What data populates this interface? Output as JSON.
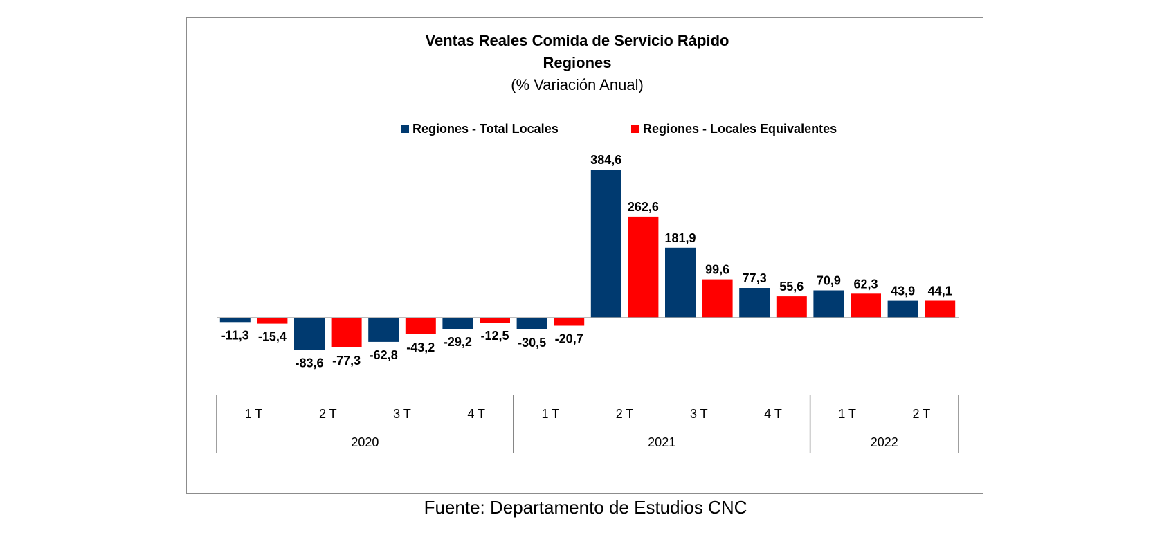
{
  "chart_data": {
    "type": "bar",
    "title": "Ventas Reales Comida de Servicio Rápido",
    "subtitle_line1": "Regiones",
    "subtitle_line2": "(% Variación Anual)",
    "x_groups": [
      {
        "label": "2020",
        "quarters": [
          "1 T",
          "2 T",
          "3 T",
          "4 T"
        ]
      },
      {
        "label": "2021",
        "quarters": [
          "1 T",
          "2 T",
          "3 T",
          "4 T"
        ]
      },
      {
        "label": "2022",
        "quarters": [
          "1 T",
          "2 T"
        ]
      }
    ],
    "categories": [
      "2020 1 T",
      "2020 2 T",
      "2020 3 T",
      "2020 4 T",
      "2021 1 T",
      "2021 2 T",
      "2021 3 T",
      "2021 4 T",
      "2022 1 T",
      "2022 2 T"
    ],
    "sequence_note": "",
    "bars": [
      {
        "series": "Regiones - Total Locales",
        "value": -11.3,
        "label": "-11,3"
      },
      {
        "series": "Regiones - Locales Equivalentes",
        "value": -15.4,
        "label": "-15,4"
      },
      {
        "series": "Regiones - Total Locales",
        "value": -83.6,
        "label": "-83,6"
      },
      {
        "series": "Regiones - Locales Equivalentes",
        "value": -77.3,
        "label": "-77,3"
      },
      {
        "series": "Regiones - Total Locales",
        "value": -62.8,
        "label": "-62,8"
      },
      {
        "series": "Regiones - Locales Equivalentes",
        "value": -43.2,
        "label": "-43,2"
      },
      {
        "series": "Regiones - Total Locales",
        "value": -29.2,
        "label": "-29,2"
      },
      {
        "series": "Regiones - Locales Equivalentes",
        "value": -12.5,
        "label": "-12,5"
      },
      {
        "series": "Regiones - Total Locales",
        "value": -30.5,
        "label": "-30,5"
      },
      {
        "series": "Regiones - Locales Equivalentes",
        "value": -20.7,
        "label": "-20,7"
      },
      {
        "series": "Regiones - Total Locales",
        "value": 384.6,
        "label": "384,6"
      },
      {
        "series": "Regiones - Locales Equivalentes",
        "value": 262.6,
        "label": "262,6"
      },
      {
        "series": "Regiones - Total Locales",
        "value": 181.9,
        "label": "181,9"
      },
      {
        "series": "Regiones - Locales Equivalentes",
        "value": 99.6,
        "label": "99,6"
      },
      {
        "series": "Regiones - Total Locales",
        "value": 77.3,
        "label": "77,3"
      },
      {
        "series": "Regiones - Locales Equivalentes",
        "value": 55.6,
        "label": "55,6"
      },
      {
        "series": "Regiones - Total Locales",
        "value": 70.9,
        "label": "70,9"
      },
      {
        "series": "Regiones - Locales Equivalentes",
        "value": 62.3,
        "label": "62,3"
      },
      {
        "series": "Regiones - Total Locales",
        "value": 43.9,
        "label": "43,9"
      },
      {
        "series": "Regiones - Locales Equivalentes",
        "value": 44.1,
        "label": "44,1"
      }
    ],
    "series": [
      {
        "name": "Regiones - Total Locales",
        "color": "#003a70"
      },
      {
        "name": "Regiones - Locales Equivalentes",
        "color": "#ff0000"
      }
    ],
    "ylim": [
      -100,
      400
    ],
    "grid": false,
    "legend_position": "top-center"
  },
  "source": "Fuente: Departamento de Estudios CNC"
}
